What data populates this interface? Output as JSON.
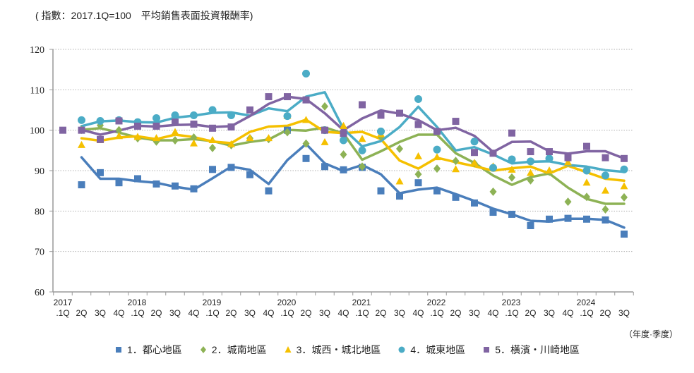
{
  "chart_data": {
    "type": "line",
    "title": "( 指數：2017.1Q=100　平均銷售表面投資報酬率)",
    "xlabel": "（年度·季度）",
    "ylabel": "",
    "ylim": [
      60,
      120
    ],
    "yticks": [
      "120",
      "110",
      "100",
      "90",
      "80",
      "70",
      "60"
    ],
    "grid": true,
    "legend_position": "bottom",
    "year_labels": [
      "2017",
      "2018",
      "2019",
      "2020",
      "2021",
      "2022",
      "2023",
      "2024"
    ],
    "quarter_labels": [
      ".1Q",
      "2Q",
      "3Q",
      "4Q",
      ".1Q",
      "2Q",
      "3Q",
      "4Q",
      ".1Q",
      "2Q",
      "3Q",
      "4Q",
      ".1Q",
      "2Q",
      "3Q",
      "4Q",
      ".1Q",
      "2Q",
      "3Q",
      "4Q",
      ".1Q",
      "2Q",
      "3Q",
      "4Q",
      ".1Q",
      "2Q",
      "3Q",
      "4Q",
      ".1Q",
      "2Q",
      "3Q"
    ],
    "categories": [
      "2017.1Q",
      "2017.2Q",
      "2017.3Q",
      "2017.4Q",
      "2018.1Q",
      "2018.2Q",
      "2018.3Q",
      "2018.4Q",
      "2019.1Q",
      "2019.2Q",
      "2019.3Q",
      "2019.4Q",
      "2020.1Q",
      "2020.2Q",
      "2020.3Q",
      "2020.4Q",
      "2021.1Q",
      "2021.2Q",
      "2021.3Q",
      "2021.4Q",
      "2022.1Q",
      "2022.2Q",
      "2022.3Q",
      "2022.4Q",
      "2023.1Q",
      "2023.2Q",
      "2023.3Q",
      "2023.4Q",
      "2024.1Q",
      "2024.2Q",
      "2024.3Q"
    ],
    "series": [
      {
        "name": "1．都心地區",
        "color": "#4a7ebb",
        "marker": "square",
        "values": [
          null,
          86.5,
          89.5,
          87.0,
          88.0,
          86.7,
          86.2,
          85.5,
          90.3,
          90.8,
          89.0,
          85.0,
          100.0,
          93.0,
          91.0,
          90.2,
          90.8,
          85.0,
          83.7,
          87.0,
          85.0,
          83.4,
          82.0,
          79.7,
          79.2,
          76.4,
          78.0,
          78.2,
          78.0,
          77.8,
          74.3
        ],
        "trend": [
          null,
          93.3,
          88.0,
          88.0,
          87.4,
          87.0,
          86.0,
          85.3,
          88.1,
          91.0,
          90.2,
          86.7,
          92.6,
          96.6,
          91.8,
          89.9,
          91.4,
          89.1,
          84.4,
          85.3,
          85.8,
          84.2,
          82.5,
          80.6,
          79.2,
          77.6,
          77.4,
          78.1,
          78.1,
          77.8,
          75.9
        ]
      },
      {
        "name": "2．城南地區",
        "color": "#8db255",
        "marker": "diamond",
        "values": [
          null,
          100.1,
          101.2,
          100.0,
          98.0,
          97.2,
          97.5,
          98.2,
          95.6,
          96.3,
          98.0,
          97.8,
          99.5,
          96.7,
          105.9,
          94.0,
          91.0,
          98.4,
          95.4,
          89.1,
          90.5,
          92.4,
          91.8,
          84.8,
          88.3,
          87.6,
          89.7,
          82.3,
          83.5,
          80.4,
          83.4
        ],
        "trend": [
          null,
          100.1,
          100.5,
          99.4,
          98.2,
          97.5,
          97.5,
          97.8,
          97.3,
          96.2,
          97.1,
          97.7,
          100.1,
          99.9,
          100.7,
          99.2,
          92.7,
          94.8,
          97.1,
          98.9,
          98.9,
          94.3,
          91.9,
          88.8,
          86.5,
          88.4,
          89.3,
          85.8,
          83.0,
          81.8,
          81.8
        ]
      },
      {
        "name": "3．城西・城北地區",
        "color": "#f5c000",
        "marker": "triangle",
        "values": [
          null,
          96.3,
          97.5,
          98.5,
          98.3,
          98.0,
          99.5,
          96.7,
          97.5,
          96.5,
          98.0,
          98.0,
          103.5,
          102.5,
          97.0,
          101.0,
          97.8,
          99.0,
          87.3,
          93.5,
          93.3,
          90.3,
          91.8,
          91.0,
          90.2,
          89.4,
          90.0,
          92.0,
          87.0,
          85.0,
          86.1
        ],
        "trend": [
          null,
          98.0,
          97.4,
          98.2,
          98.5,
          97.8,
          98.9,
          98.3,
          97.2,
          96.8,
          99.6,
          100.9,
          101.1,
          102.6,
          99.6,
          99.3,
          99.6,
          97.8,
          92.5,
          90.5,
          93.2,
          92.1,
          91.1,
          90.0,
          90.6,
          91.0,
          89.3,
          91.2,
          89.6,
          88.0,
          87.5
        ]
      },
      {
        "name": "4．城東地區",
        "color": "#4bacc6",
        "marker": "circle",
        "values": [
          null,
          102.5,
          102.3,
          102.5,
          102.0,
          103.0,
          103.7,
          103.7,
          105.0,
          103.7,
          null,
          null,
          103.5,
          114.0,
          100.0,
          97.5,
          95.0,
          99.7,
          null,
          107.7,
          95.2,
          null,
          97.2,
          90.7,
          92.8,
          92.3,
          93.0,
          null,
          90.0,
          88.8,
          90.3
        ],
        "trend": [
          null,
          101.0,
          102.2,
          102.4,
          102.0,
          101.9,
          103.1,
          103.6,
          104.3,
          104.4,
          103.6,
          105.4,
          104.7,
          108.3,
          109.4,
          100.3,
          96.0,
          97.3,
          100.8,
          105.8,
          100.8,
          95.0,
          95.8,
          94.0,
          91.8,
          92.2,
          92.3,
          91.4,
          91.0,
          90.1,
          89.7
        ]
      },
      {
        "name": "5．橫濱・川崎地區",
        "color": "#8064a2",
        "marker": "square",
        "values": [
          100.0,
          100.0,
          97.7,
          102.3,
          101.0,
          101.0,
          102.0,
          101.5,
          100.5,
          100.8,
          105.0,
          108.3,
          108.3,
          107.5,
          100.0,
          99.2,
          106.3,
          103.7,
          104.2,
          101.4,
          99.7,
          102.2,
          94.5,
          94.3,
          99.3,
          94.7,
          94.7,
          93.2,
          96.0,
          93.2,
          93.0
        ],
        "trend": [
          null,
          100.1,
          98.9,
          99.9,
          101.1,
          100.9,
          101.3,
          101.4,
          100.8,
          101.0,
          103.5,
          106.5,
          108.3,
          107.7,
          104.2,
          100.0,
          102.9,
          104.9,
          104.1,
          102.5,
          100.0,
          100.6,
          98.6,
          94.6,
          97.1,
          97.2,
          94.8,
          94.2,
          94.8,
          94.8,
          93.0
        ]
      }
    ]
  },
  "legend": {
    "items": [
      {
        "label": "1．都心地區",
        "color": "#4a7ebb",
        "marker": "square"
      },
      {
        "label": "2．城南地區",
        "color": "#8db255",
        "marker": "diamond"
      },
      {
        "label": "3．城西・城北地區",
        "color": "#f5c000",
        "marker": "triangle"
      },
      {
        "label": "4．城東地區",
        "color": "#4bacc6",
        "marker": "circle"
      },
      {
        "label": "5．橫濱・川崎地區",
        "color": "#8064a2",
        "marker": "square"
      }
    ]
  }
}
